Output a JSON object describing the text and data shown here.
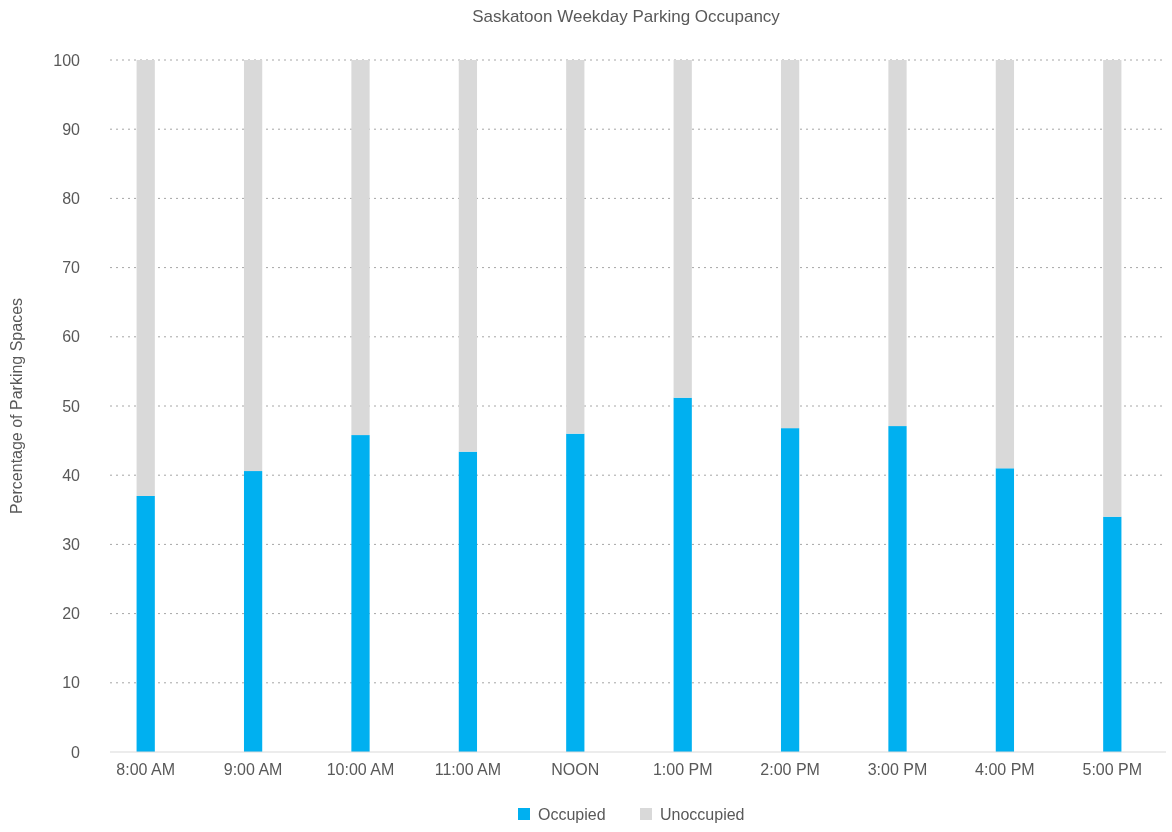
{
  "chart_data": {
    "type": "bar",
    "title": "Saskatoon Weekday Parking Occupancy",
    "ylabel": "Percentage of Parking Spaces",
    "categories": [
      "8:00 AM",
      "9:00 AM",
      "10:00 AM",
      "11:00 AM",
      "NOON",
      "1:00 PM",
      "2:00 PM",
      "3:00 PM",
      "4:00 PM",
      "5:00 PM"
    ],
    "stacked": true,
    "series": [
      {
        "name": "Occupied",
        "color": "#00b0f0",
        "values": [
          37,
          40.6,
          45.8,
          43.4,
          46,
          51.2,
          46.8,
          47.1,
          41,
          34
        ]
      },
      {
        "name": "Unoccupied",
        "color": "#d9d9d9",
        "values": [
          63,
          59.4,
          54.2,
          56.6,
          54,
          48.8,
          53.2,
          52.9,
          59,
          66
        ]
      }
    ],
    "ylim": [
      0,
      100
    ],
    "yticks": [
      0,
      10,
      20,
      30,
      40,
      50,
      60,
      70,
      80,
      90,
      100
    ],
    "grid": "y",
    "legend": "bottom"
  }
}
